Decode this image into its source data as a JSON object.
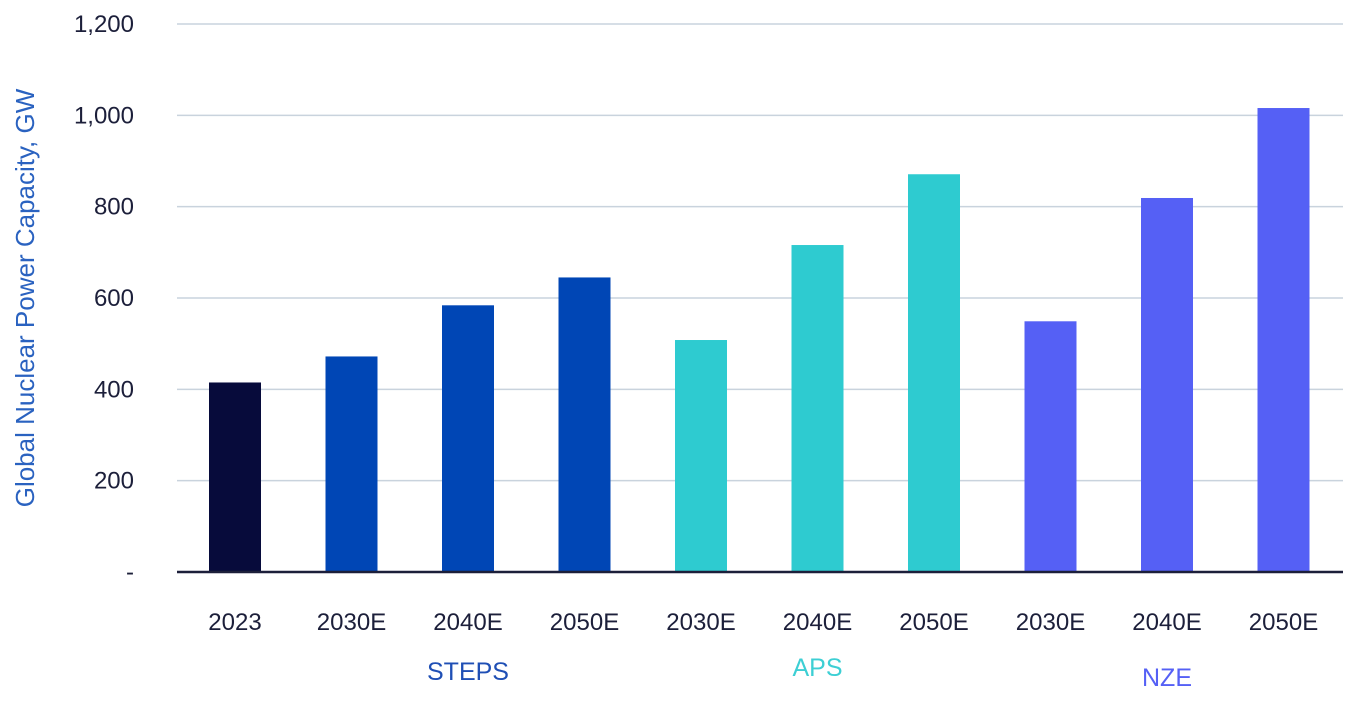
{
  "chart_data": {
    "type": "bar",
    "title": "",
    "xlabel": "",
    "ylabel": "Global Nuclear Power Capacity, GW",
    "ylim": [
      0,
      1200
    ],
    "yticks": [
      {
        "value": 0,
        "label": "-"
      },
      {
        "value": 200,
        "label": "200"
      },
      {
        "value": 400,
        "label": "400"
      },
      {
        "value": 600,
        "label": "600"
      },
      {
        "value": 800,
        "label": "800"
      },
      {
        "value": 1000,
        "label": "1,000"
      },
      {
        "value": 1200,
        "label": "1,200"
      }
    ],
    "grid": true,
    "legend": "none",
    "categories": [
      "2023",
      "2030E",
      "2040E",
      "2050E",
      "2030E",
      "2040E",
      "2050E",
      "2030E",
      "2040E",
      "2050E"
    ],
    "values": [
      415,
      472,
      584,
      645,
      508,
      716,
      871,
      549,
      819,
      1016
    ],
    "bar_colors": [
      "#070b3b",
      "#0046b5",
      "#0046b5",
      "#0046b5",
      "#2ecbd0",
      "#2ecbd0",
      "#2ecbd0",
      "#5560f5",
      "#5560f5",
      "#5560f5"
    ],
    "groups": [
      {
        "label": "STEPS",
        "color": "#1f4fb5",
        "start": 1,
        "end": 3
      },
      {
        "label": "APS",
        "color": "#3dcfd4",
        "start": 4,
        "end": 6
      },
      {
        "label": "NZE",
        "color": "#5560f5",
        "start": 7,
        "end": 9
      }
    ],
    "colors": {
      "axis": "#1c1f3a",
      "grid": "#c9d3dd",
      "tick_text": "#1c1f3a",
      "ylabel": "#2a62c0"
    }
  }
}
